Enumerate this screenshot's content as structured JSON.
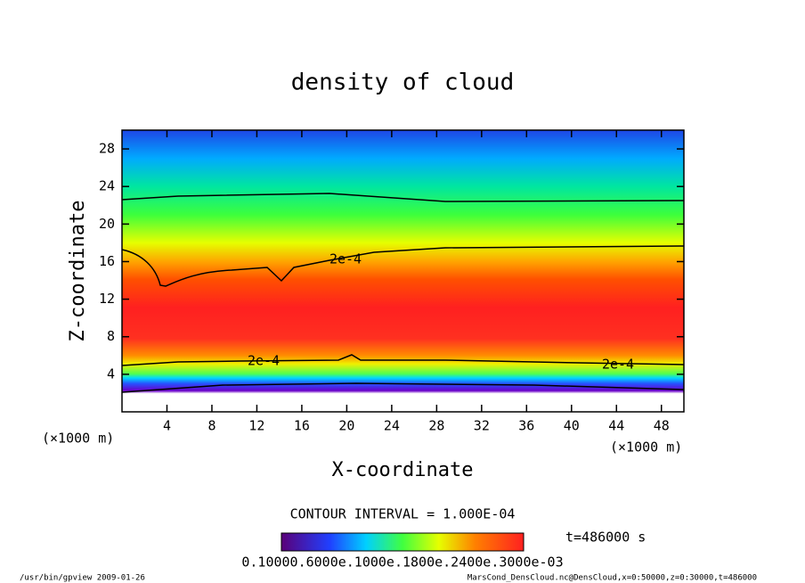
{
  "chart_data": {
    "type": "contour",
    "title": "density of cloud",
    "xlabel": "X-coordinate",
    "ylabel": "Z-coordinate",
    "xunit": "(×1000 m)",
    "yunit": "(×1000 m)",
    "xlim": [
      0,
      50
    ],
    "ylim": [
      0,
      30
    ],
    "xticks": [
      4,
      8,
      12,
      16,
      20,
      24,
      28,
      32,
      36,
      40,
      44,
      48
    ],
    "yticks": [
      4,
      8,
      12,
      16,
      20,
      24,
      28
    ],
    "contour_labels": [
      "2e-4",
      "2e-4",
      "2e-4"
    ],
    "contour_interval": "CONTOUR INTERVAL = 1.000E-04",
    "time": "t=486000 s",
    "colorbar_label": "0.10000.6000e.1000e.1800e.2400e.3000e-03",
    "footer_left": "/usr/bin/gpview  2009-01-26",
    "footer_right": "MarsCond_DensCloud.nc@DensCloud,x=0:50000,z=0:30000,t=486000"
  }
}
